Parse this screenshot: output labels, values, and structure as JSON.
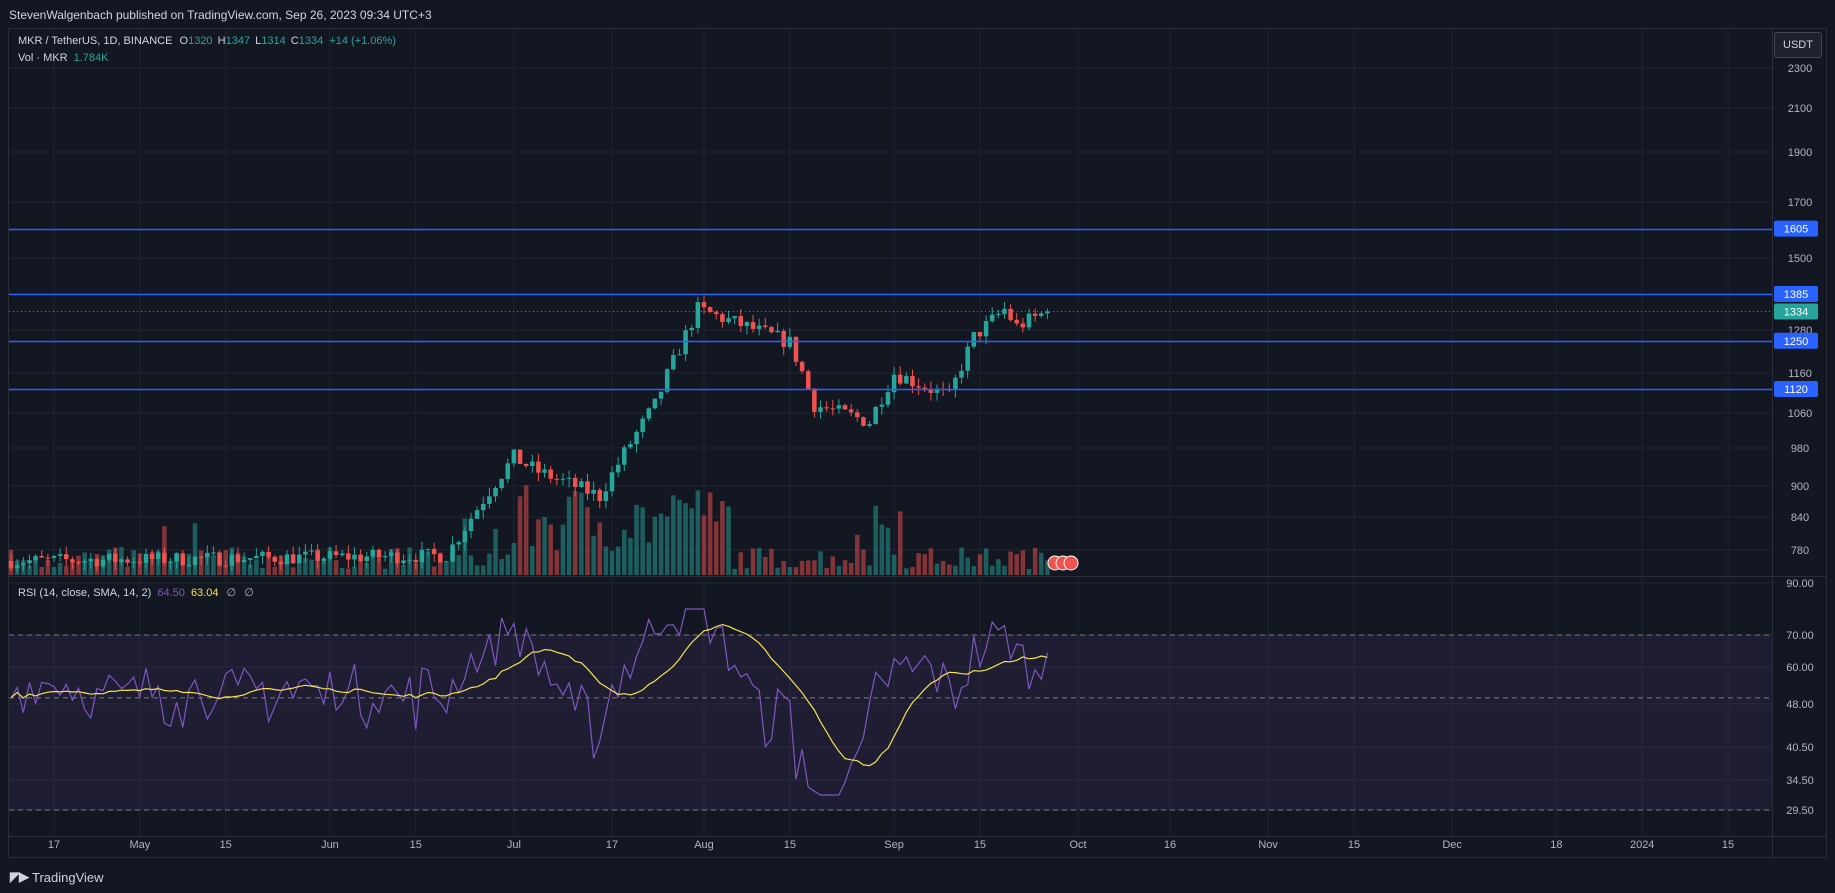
{
  "header": {
    "published": "StevenWalgenbach published on TradingView.com, Sep 26, 2023 09:34 UTC+3"
  },
  "footer": {
    "brand": "TradingView",
    "logo": "tradingview-logo"
  },
  "legend": {
    "symbol": "MKR / TetherUS, 1D, BINANCE",
    "o_label": "O",
    "o": "1320",
    "h_label": "H",
    "h": "1347",
    "l_label": "L",
    "l": "1314",
    "c_label": "C",
    "c": "1334",
    "change": "+14 (+1.06%)",
    "vol_label": "Vol · MKR",
    "vol": "1.784K",
    "rsi_label": "RSI (14, close, SMA, 14, 2)",
    "rsi_value": "64.50",
    "rsi_ma": "63.04",
    "empty1": "∅",
    "empty2": "∅"
  },
  "currency_button": "USDT",
  "colors": {
    "up": "#26a69a",
    "down": "#ef5350",
    "line": "#2962ff",
    "rsi": "#7e57c2",
    "rsi_ma": "#f5e24d",
    "bg": "#131722"
  },
  "chart_data": [
    {
      "type": "candlestick",
      "title": "MKR / TetherUS, 1D, BINANCE",
      "y_axis_ticks": [
        "2300",
        "2100",
        "1900",
        "1700",
        "1500",
        "1385",
        "1280",
        "1160",
        "1060",
        "980",
        "900",
        "840",
        "780"
      ],
      "x_axis_ticks": [
        "17",
        "May",
        "15",
        "Jun",
        "15",
        "Jul",
        "17",
        "Aug",
        "15",
        "Sep",
        "15",
        "Oct",
        "16",
        "Nov",
        "15",
        "Dec",
        "18",
        "2024",
        "15"
      ],
      "horizontal_levels": [
        1605,
        1385,
        1250,
        1120
      ],
      "last_price": 1334,
      "price_anchor_points": [
        {
          "date": "2023-04-10",
          "close": 760
        },
        {
          "date": "2023-06-20",
          "close": 770
        },
        {
          "date": "2023-07-01",
          "close": 960
        },
        {
          "date": "2023-07-05",
          "close": 930
        },
        {
          "date": "2023-07-15",
          "close": 880
        },
        {
          "date": "2023-07-24",
          "close": 1080
        },
        {
          "date": "2023-07-31",
          "close": 1340
        },
        {
          "date": "2023-08-15",
          "close": 1245
        },
        {
          "date": "2023-08-19",
          "close": 1080
        },
        {
          "date": "2023-08-28",
          "close": 1040
        },
        {
          "date": "2023-09-01",
          "close": 1160
        },
        {
          "date": "2023-09-10",
          "close": 1100
        },
        {
          "date": "2023-09-14",
          "close": 1260
        },
        {
          "date": "2023-09-19",
          "close": 1340
        },
        {
          "date": "2023-09-21",
          "close": 1290
        },
        {
          "date": "2023-09-26",
          "close": 1334
        }
      ]
    },
    {
      "type": "line",
      "title": "RSI (14, close, SMA, 14, 2)",
      "y_axis_ticks": [
        "90.00",
        "70.00",
        "60.00",
        "48.00",
        "40.50",
        "34.50",
        "29.50"
      ],
      "bands": [
        30,
        50,
        70
      ],
      "series": [
        {
          "name": "RSI",
          "last": 64.5
        },
        {
          "name": "RSI-based MA",
          "last": 63.04
        }
      ]
    }
  ]
}
